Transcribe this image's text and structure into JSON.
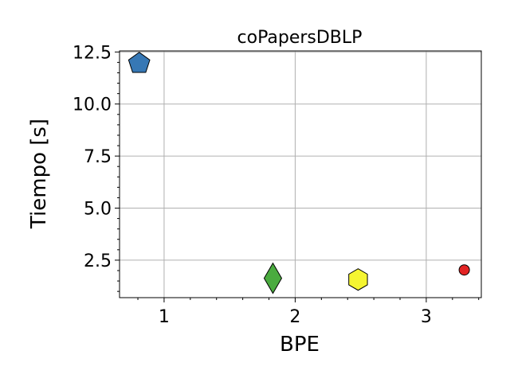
{
  "chart_data": {
    "type": "scatter",
    "title": "coPapersDBLP",
    "xlabel": "BPE",
    "ylabel": "Tiempo [s]",
    "xlim": [
      0.66,
      3.42
    ],
    "ylim": [
      0.7,
      12.55
    ],
    "x_ticks": [
      1,
      2,
      3
    ],
    "x_tick_labels": [
      "1",
      "2",
      "3"
    ],
    "y_ticks": [
      2.5,
      5.0,
      7.5,
      10.0,
      12.5
    ],
    "y_tick_labels": [
      "2.5",
      "5.0",
      "7.5",
      "10.0",
      "12.5"
    ],
    "grid": true,
    "points": [
      {
        "x": 0.81,
        "y": 11.95,
        "marker": "pentagon",
        "color": "#3778b5"
      },
      {
        "x": 1.83,
        "y": 1.63,
        "marker": "diamond",
        "color": "#4aab3f"
      },
      {
        "x": 2.48,
        "y": 1.57,
        "marker": "hexagon",
        "color": "#f5f531"
      },
      {
        "x": 3.29,
        "y": 2.03,
        "marker": "circle",
        "color": "#e32424"
      }
    ]
  }
}
